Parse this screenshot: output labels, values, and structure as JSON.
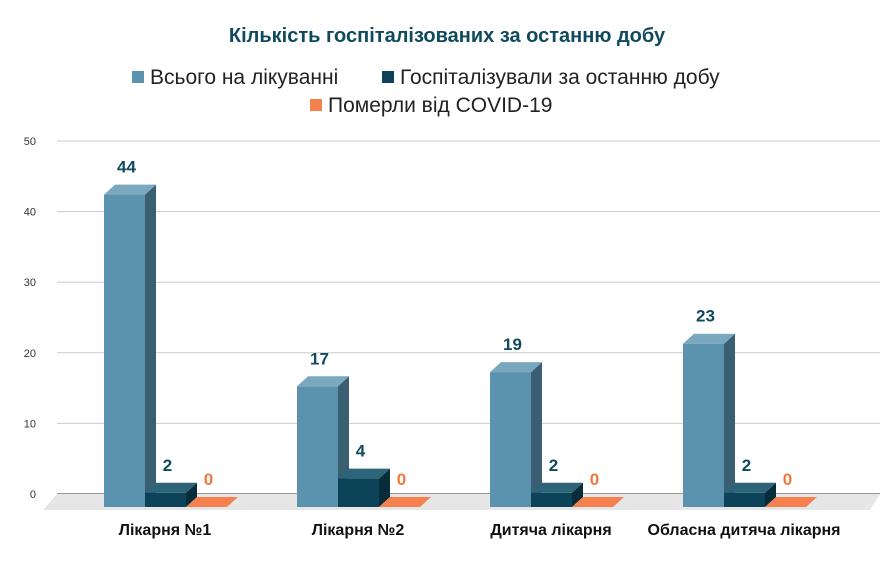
{
  "chart_data": {
    "type": "bar",
    "title": "Кількість госпіталізованих за останню добу",
    "categories": [
      "Лікарня №1",
      "Лікарня №2",
      "Дитяча лікарня",
      "Обласна дитяча лікарня"
    ],
    "series": [
      {
        "name": "Всього на лікуванні",
        "values": [
          44,
          17,
          19,
          23
        ],
        "color": "#5b93ae",
        "side": "#3b5f72",
        "top": "#7aa9bf",
        "label_color": "#0f4a5e"
      },
      {
        "name": "Госпіталізували за останню добу",
        "values": [
          2,
          4,
          2,
          2
        ],
        "color": "#0c4358",
        "side": "#082c3a",
        "top": "#2d6478",
        "label_color": "#0f4a5e"
      },
      {
        "name": "Померли від COVID-19",
        "values": [
          0,
          0,
          0,
          0
        ],
        "color": "#f5814f",
        "side": "#c45f33",
        "top": "#f5814f",
        "label_color": "#f0783c"
      }
    ],
    "yticks": [
      0,
      10,
      20,
      30,
      40,
      50
    ],
    "ylim": [
      0,
      50
    ],
    "xlabel": "",
    "ylabel": "",
    "grid": true,
    "legend_position": "top",
    "title_color": "#0f4a5e"
  }
}
